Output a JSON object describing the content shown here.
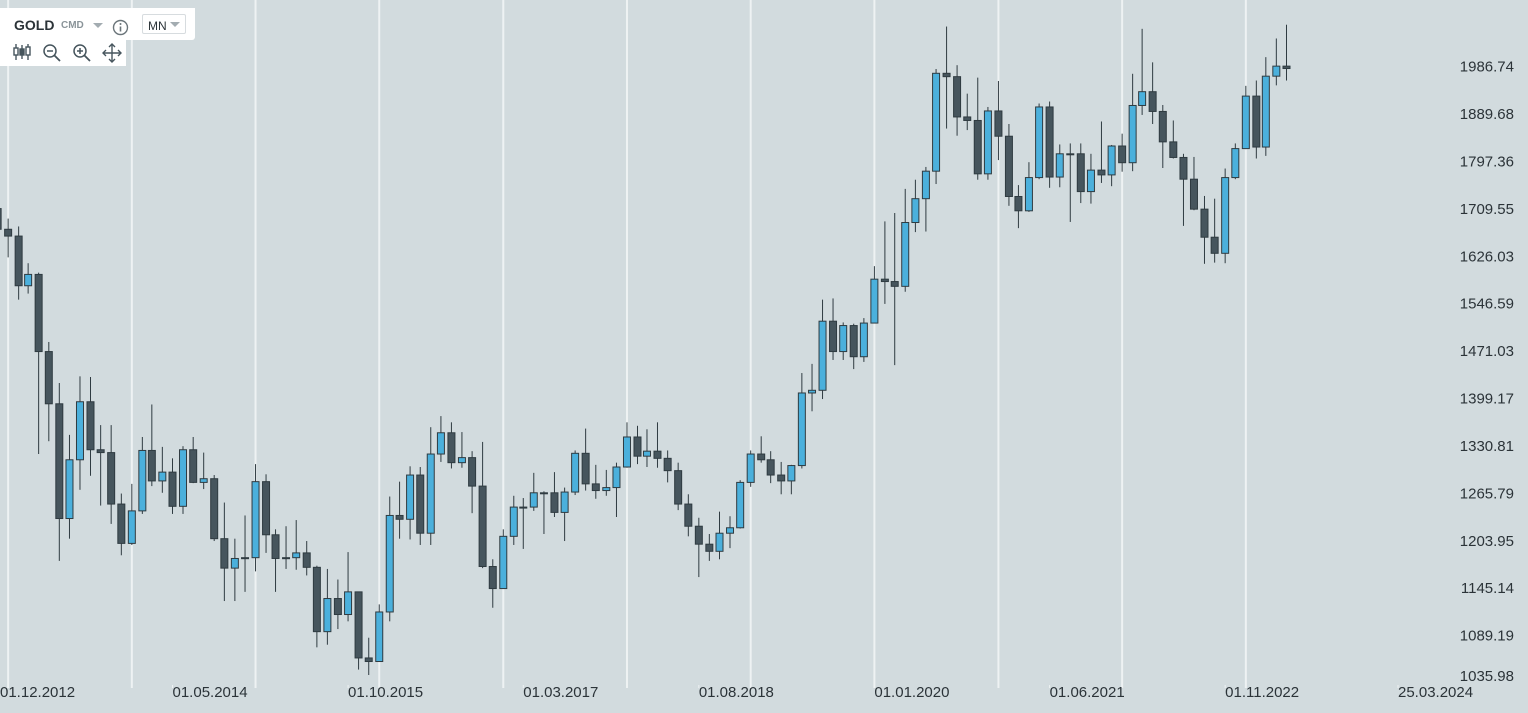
{
  "toolbar": {
    "symbol": "GOLD",
    "kind": "CMD",
    "timeframe": "MN"
  },
  "chart_data": {
    "type": "candlestick",
    "log_scale": true,
    "up_color": "#4bb0dc",
    "down_color": "#46555d",
    "edge_color": "#2f3b41",
    "x": [
      "2012-12-01",
      "2013-01-01",
      "2013-02-01",
      "2013-03-01",
      "2013-04-01",
      "2013-05-01",
      "2013-06-01",
      "2013-07-01",
      "2013-08-01",
      "2013-09-01",
      "2013-10-01",
      "2013-11-01",
      "2013-12-01",
      "2014-01-01",
      "2014-02-01",
      "2014-03-01",
      "2014-04-01",
      "2014-05-01",
      "2014-06-01",
      "2014-07-01",
      "2014-08-01",
      "2014-09-01",
      "2014-10-01",
      "2014-11-01",
      "2014-12-01",
      "2015-01-01",
      "2015-02-01",
      "2015-03-01",
      "2015-04-01",
      "2015-05-01",
      "2015-06-01",
      "2015-07-01",
      "2015-08-01",
      "2015-09-01",
      "2015-10-01",
      "2015-11-01",
      "2015-12-01",
      "2016-01-01",
      "2016-02-01",
      "2016-03-01",
      "2016-04-01",
      "2016-05-01",
      "2016-06-01",
      "2016-07-01",
      "2016-08-01",
      "2016-09-01",
      "2016-10-01",
      "2016-11-01",
      "2016-12-01",
      "2017-01-01",
      "2017-02-01",
      "2017-03-01",
      "2017-04-01",
      "2017-05-01",
      "2017-06-01",
      "2017-07-01",
      "2017-08-01",
      "2017-09-01",
      "2017-10-01",
      "2017-11-01",
      "2017-12-01",
      "2018-01-01",
      "2018-02-01",
      "2018-03-01",
      "2018-04-01",
      "2018-05-01",
      "2018-06-01",
      "2018-07-01",
      "2018-08-01",
      "2018-09-01",
      "2018-10-01",
      "2018-11-01",
      "2018-12-01",
      "2019-01-01",
      "2019-02-01",
      "2019-03-01",
      "2019-04-01",
      "2019-05-01",
      "2019-06-01",
      "2019-07-01",
      "2019-08-01",
      "2019-09-01",
      "2019-10-01",
      "2019-11-01",
      "2019-12-01",
      "2020-01-01",
      "2020-02-01",
      "2020-03-01",
      "2020-04-01",
      "2020-05-01",
      "2020-06-01",
      "2020-07-01",
      "2020-08-01",
      "2020-09-01",
      "2020-10-01",
      "2020-11-01",
      "2020-12-01",
      "2021-01-01",
      "2021-02-01",
      "2021-03-01",
      "2021-04-01",
      "2021-05-01",
      "2021-06-01",
      "2021-07-01",
      "2021-08-01",
      "2021-09-01",
      "2021-10-01",
      "2021-11-01",
      "2021-12-01",
      "2022-01-01",
      "2022-02-01",
      "2022-03-01",
      "2022-04-01",
      "2022-05-01",
      "2022-06-01",
      "2022-07-01",
      "2022-08-01",
      "2022-09-01",
      "2022-10-01",
      "2022-11-01",
      "2022-12-01",
      "2023-01-01",
      "2023-02-01",
      "2023-03-01",
      "2023-04-01",
      "2023-05-01"
    ],
    "open": [
      1712,
      1675,
      1663,
      1578,
      1597,
      1472,
      1393,
      1234,
      1313,
      1396,
      1327,
      1323,
      1253,
      1202,
      1244,
      1326,
      1284,
      1296,
      1250,
      1327,
      1282,
      1287,
      1208,
      1171,
      1183,
      1184,
      1283,
      1213,
      1183,
      1184,
      1190,
      1172,
      1095,
      1134,
      1115,
      1142,
      1065,
      1061,
      1118,
      1238,
      1233,
      1292,
      1215,
      1321,
      1351,
      1309,
      1316,
      1277,
      1173,
      1146,
      1211,
      1249,
      1249,
      1268,
      1268,
      1242,
      1269,
      1322,
      1280,
      1271,
      1275,
      1303,
      1345,
      1318,
      1325,
      1315,
      1298,
      1253,
      1224,
      1201,
      1192,
      1215,
      1222,
      1282,
      1321,
      1313,
      1292,
      1284,
      1305,
      1409,
      1413,
      1520,
      1472,
      1513,
      1464,
      1517,
      1589,
      1585,
      1577,
      1687,
      1730,
      1781,
      1975,
      1968,
      1886,
      1879,
      1776,
      1898,
      1848,
      1734,
      1708,
      1769,
      1906,
      1770,
      1814,
      1814,
      1743,
      1783,
      1774,
      1829,
      1797,
      1909,
      1937,
      1897,
      1837,
      1807,
      1766,
      1711,
      1661,
      1633,
      1769,
      1824,
      1928,
      1827,
      1969,
      1990
    ],
    "high": [
      1724,
      1694,
      1680,
      1616,
      1600,
      1487,
      1424,
      1348,
      1434,
      1433,
      1362,
      1362,
      1267,
      1280,
      1345,
      1392,
      1331,
      1315,
      1332,
      1345,
      1323,
      1292,
      1255,
      1208,
      1238,
      1307,
      1293,
      1220,
      1224,
      1232,
      1205,
      1174,
      1170,
      1157,
      1191,
      1142,
      1088,
      1127,
      1263,
      1283,
      1304,
      1303,
      1359,
      1375,
      1366,
      1352,
      1325,
      1338,
      1182,
      1220,
      1264,
      1261,
      1295,
      1270,
      1296,
      1275,
      1326,
      1357,
      1306,
      1299,
      1309,
      1366,
      1361,
      1356,
      1366,
      1326,
      1309,
      1266,
      1235,
      1214,
      1243,
      1237,
      1285,
      1326,
      1346,
      1325,
      1310,
      1306,
      1439,
      1453,
      1555,
      1557,
      1518,
      1516,
      1525,
      1611,
      1689,
      1704,
      1748,
      1765,
      1789,
      1984,
      2075,
      1992,
      1933,
      1966,
      1906,
      1959,
      1872,
      1755,
      1798,
      1913,
      1917,
      1832,
      1834,
      1834,
      1814,
      1877,
      1831,
      1853,
      1974,
      2070,
      1998,
      1910,
      1879,
      1814,
      1808,
      1735,
      1730,
      1786,
      1834,
      1949,
      1960,
      2009,
      2049,
      2079
    ],
    "low": [
      1636,
      1626,
      1555,
      1565,
      1321,
      1339,
      1180,
      1208,
      1272,
      1291,
      1251,
      1227,
      1187,
      1200,
      1240,
      1277,
      1268,
      1240,
      1240,
      1281,
      1273,
      1205,
      1131,
      1131,
      1142,
      1167,
      1190,
      1142,
      1170,
      1169,
      1162,
      1077,
      1080,
      1098,
      1107,
      1052,
      1046,
      1061,
      1107,
      1208,
      1207,
      1200,
      1200,
      1310,
      1301,
      1302,
      1241,
      1171,
      1123,
      1146,
      1200,
      1195,
      1244,
      1214,
      1236,
      1205,
      1265,
      1271,
      1260,
      1264,
      1236,
      1302,
      1307,
      1303,
      1302,
      1282,
      1245,
      1211,
      1160,
      1180,
      1182,
      1196,
      1221,
      1276,
      1309,
      1281,
      1266,
      1266,
      1301,
      1382,
      1400,
      1459,
      1459,
      1445,
      1456,
      1517,
      1548,
      1451,
      1568,
      1670,
      1671,
      1757,
      1863,
      1849,
      1860,
      1765,
      1765,
      1802,
      1717,
      1677,
      1706,
      1766,
      1750,
      1751,
      1688,
      1722,
      1721,
      1759,
      1753,
      1780,
      1781,
      1890,
      1872,
      1787,
      1805,
      1681,
      1709,
      1615,
      1617,
      1616,
      1766,
      1823,
      1805,
      1810,
      1950,
      1960
    ],
    "close": [
      1675,
      1663,
      1578,
      1597,
      1472,
      1393,
      1234,
      1313,
      1396,
      1327,
      1323,
      1253,
      1202,
      1244,
      1326,
      1284,
      1296,
      1250,
      1327,
      1282,
      1287,
      1208,
      1171,
      1183,
      1184,
      1283,
      1213,
      1183,
      1184,
      1190,
      1172,
      1095,
      1134,
      1115,
      1142,
      1065,
      1061,
      1118,
      1238,
      1233,
      1292,
      1215,
      1321,
      1351,
      1309,
      1316,
      1277,
      1173,
      1146,
      1211,
      1249,
      1249,
      1268,
      1268,
      1242,
      1269,
      1322,
      1280,
      1271,
      1275,
      1303,
      1345,
      1318,
      1325,
      1315,
      1298,
      1253,
      1224,
      1201,
      1192,
      1215,
      1222,
      1282,
      1321,
      1313,
      1292,
      1284,
      1305,
      1409,
      1413,
      1520,
      1472,
      1513,
      1464,
      1517,
      1589,
      1585,
      1577,
      1687,
      1730,
      1781,
      1975,
      1968,
      1886,
      1879,
      1776,
      1898,
      1848,
      1734,
      1708,
      1769,
      1906,
      1770,
      1814,
      1814,
      1743,
      1783,
      1774,
      1829,
      1797,
      1909,
      1937,
      1897,
      1837,
      1807,
      1766,
      1711,
      1661,
      1633,
      1769,
      1824,
      1928,
      1827,
      1969,
      1990,
      1985
    ],
    "xlim": [
      "2012-12-08",
      "2024-03-25"
    ],
    "xticks": [
      {
        "value": "2012-12-01",
        "label": "01.12.2012"
      },
      {
        "value": "2014-05-01",
        "label": "01.05.2014"
      },
      {
        "value": "2015-10-01",
        "label": "01.10.2015"
      },
      {
        "value": "2017-03-01",
        "label": "01.03.2017"
      },
      {
        "value": "2018-08-01",
        "label": "01.08.2018"
      },
      {
        "value": "2020-01-01",
        "label": "01.01.2020"
      },
      {
        "value": "2021-06-01",
        "label": "01.06.2021"
      },
      {
        "value": "2022-11-01",
        "label": "01.11.2022"
      },
      {
        "value": "2024-03-25",
        "label": "25.03.2024"
      }
    ],
    "xgrid": [
      "2013-01-01",
      "2014-01-01",
      "2015-01-01",
      "2016-01-01",
      "2017-01-01",
      "2018-01-01",
      "2019-01-01",
      "2020-01-01",
      "2021-01-01",
      "2022-01-01",
      "2023-01-01"
    ],
    "ylim": [
      1035,
      2134
    ],
    "yticks": [
      1986.74,
      1889.68,
      1797.36,
      1709.55,
      1626.03,
      1546.59,
      1471.03,
      1399.17,
      1330.81,
      1265.79,
      1203.95,
      1145.14,
      1089.19,
      1035.98
    ]
  }
}
